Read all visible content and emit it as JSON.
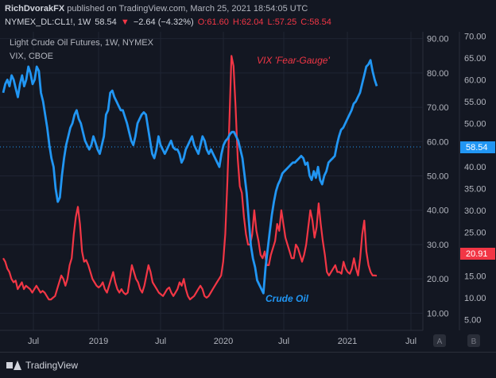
{
  "header": {
    "author": "RichDvorakFX",
    "published_text": "published on TradingView.com, March 25, 2021 18:54:05 UTC",
    "symbol": "NYMEX_DL:CL1!, 1W",
    "last": "58.54",
    "change_arrow": "▼",
    "change": "−2.64 (−4.32%)",
    "open": "O:61.60",
    "high": "H:62.04",
    "low": "L:57.25",
    "close": "C:58.54"
  },
  "footer": {
    "brand": "TradingView"
  },
  "colors": {
    "background": "#131722",
    "oil": "#2196f3",
    "vix": "#f23645",
    "grid": "#1f2433",
    "text": "#b2b5be"
  },
  "chart_data": {
    "type": "line",
    "legend": [
      "Light Crude Oil Futures, 1W, NYMEX",
      "VIX, CBOE"
    ],
    "x_ticks": [
      "Jul",
      "2019",
      "Jul",
      "2020",
      "Jul",
      "2021",
      "Jul"
    ],
    "left_axis_ticks": [
      "90.00",
      "80.00",
      "70.00",
      "60.00",
      "50.00",
      "40.00",
      "30.00",
      "20.00",
      "10.00"
    ],
    "right_axis_ticks": [
      "70.00",
      "65.00",
      "60.00",
      "55.00",
      "50.00",
      "45.00",
      "40.00",
      "35.00",
      "30.00",
      "25.00",
      "20.00",
      "15.00",
      "10.00",
      "5.00"
    ],
    "scale_buttons": [
      "A",
      "B"
    ],
    "left_axis_range": [
      5,
      92
    ],
    "right_axis_range": [
      2.5,
      71
    ],
    "annotations": [
      {
        "text": "VIX 'Fear-Gauge'",
        "series": "VIX"
      },
      {
        "text": "Crude Oil",
        "series": "Crude Oil"
      }
    ],
    "price_labels": {
      "oil": "58.54",
      "vix": "20.91"
    },
    "series": [
      {
        "name": "Crude Oil",
        "axis": "right",
        "values": [
          57,
          59,
          60,
          58.5,
          61,
          60,
          58,
          56,
          59,
          61,
          58.5,
          60,
          63,
          61.5,
          59,
          60,
          63,
          62,
          57,
          55,
          52,
          49,
          45,
          42,
          40,
          35,
          32,
          33,
          38,
          42,
          45,
          47,
          49,
          50,
          52,
          53,
          51,
          50,
          48,
          46,
          45,
          44,
          45,
          47,
          45.5,
          44,
          43,
          45,
          47,
          52,
          53,
          57,
          57.5,
          56,
          55,
          54,
          53,
          53,
          51.5,
          50,
          48,
          46,
          45,
          47,
          50,
          51,
          52,
          52.5,
          52,
          49,
          46,
          43,
          42,
          44,
          47,
          45,
          44,
          43,
          44,
          45,
          46,
          44.5,
          44,
          44,
          43,
          41,
          42,
          44,
          45,
          46,
          47,
          45,
          44,
          43,
          45,
          47,
          46,
          44,
          43,
          44,
          43,
          42,
          41,
          40,
          43,
          45,
          46,
          46.5,
          47.5,
          48,
          48,
          47,
          46,
          44,
          42,
          38,
          34,
          28,
          22,
          19,
          17,
          14,
          13,
          12,
          11,
          17,
          21,
          25,
          29,
          32,
          34.5,
          36,
          37,
          38.5,
          39,
          39.5,
          40,
          40.5,
          41,
          41,
          41.5,
          42,
          42.5,
          42,
          40.5,
          41,
          38,
          37,
          39,
          37.5,
          40,
          37,
          36,
          38,
          39,
          41,
          41.5,
          42,
          42.5,
          45,
          47,
          48.5,
          49,
          50,
          51,
          52,
          53,
          54.5,
          55,
          56,
          57,
          59,
          61,
          63,
          63.5,
          64.5,
          62,
          60,
          58.54
        ]
      },
      {
        "name": "VIX",
        "axis": "left",
        "values": [
          26,
          25,
          23,
          22,
          20,
          19,
          19.5,
          17,
          18,
          19,
          17,
          18,
          17.5,
          17,
          16,
          17,
          18,
          17,
          16,
          16.5,
          16,
          15,
          14,
          14,
          14.5,
          15,
          17,
          19,
          21,
          20,
          18,
          20,
          24,
          26,
          33,
          38,
          41,
          36,
          28,
          25,
          25.5,
          24,
          22,
          20,
          19,
          18,
          17.5,
          18,
          19,
          17,
          16,
          18,
          20,
          22,
          19,
          17,
          16,
          17,
          16,
          15.5,
          16,
          20,
          24,
          22,
          20,
          19,
          17,
          16,
          18,
          21,
          24,
          22,
          19,
          18,
          17,
          16,
          15.5,
          15,
          16,
          17,
          17.5,
          16,
          15,
          16,
          17,
          19,
          18,
          20,
          17,
          15,
          14,
          14.5,
          15,
          16,
          17,
          18,
          17,
          15,
          14.5,
          15,
          16,
          17,
          18,
          19,
          20,
          21,
          25,
          33,
          48,
          66,
          85,
          82,
          70,
          55,
          47,
          45,
          38,
          33,
          30,
          30,
          33,
          40,
          34,
          31,
          27,
          26,
          28,
          24,
          24,
          27,
          29,
          31,
          36,
          34,
          40,
          36,
          32,
          30,
          28,
          26,
          26,
          30,
          29,
          27,
          25,
          27,
          30,
          35,
          40,
          37,
          32,
          35,
          42,
          36,
          31,
          27,
          22,
          21,
          22,
          23,
          24,
          22,
          22,
          21.5,
          25,
          23,
          22,
          21.5,
          23,
          26,
          23,
          21,
          26,
          33,
          37,
          28,
          24,
          22,
          21,
          21,
          20.91
        ]
      }
    ]
  }
}
